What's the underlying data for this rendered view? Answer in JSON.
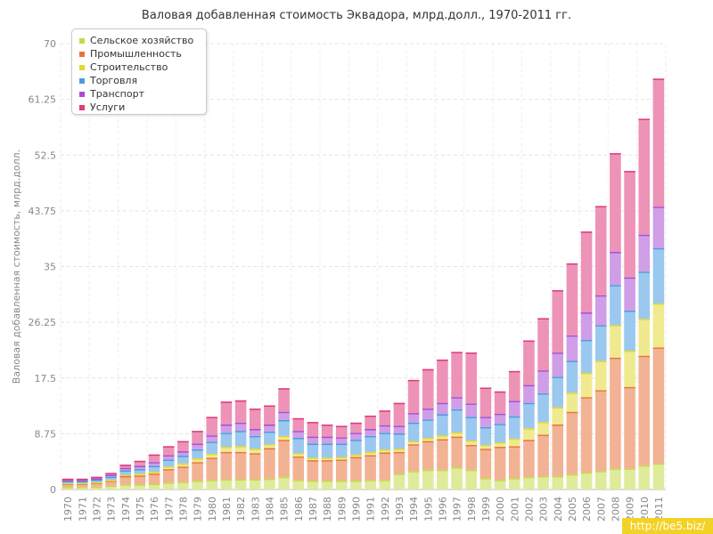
{
  "chart_data": {
    "type": "bar",
    "stacked": true,
    "title": "Валовая добавленная стоимость Эквадора, млрд.долл., 1970-2011 гг.",
    "ylabel": "Валовая добавленная стоимость, млрд.долл.",
    "ylim": [
      0,
      70
    ],
    "yticks": [
      "0",
      "8.75",
      "17.5",
      "26.25",
      "35",
      "43.75",
      "52.5",
      "61.25",
      "70"
    ],
    "grid": true,
    "legend_position": "top-left",
    "categories": [
      "1970",
      "1971",
      "1972",
      "1973",
      "1974",
      "1975",
      "1976",
      "1977",
      "1978",
      "1979",
      "1980",
      "1981",
      "1982",
      "1983",
      "1984",
      "1985",
      "1986",
      "1987",
      "1988",
      "1989",
      "1990",
      "1991",
      "1992",
      "1993",
      "1994",
      "1995",
      "1996",
      "1997",
      "1998",
      "1999",
      "2000",
      "2001",
      "2002",
      "2003",
      "2004",
      "2005",
      "2006",
      "2007",
      "2008",
      "2009",
      "2010",
      "2011"
    ],
    "series": [
      {
        "name": "Сельское хозяйство",
        "color": "#c7d84a",
        "values": [
          0.4,
          0.4,
          0.45,
          0.6,
          0.8,
          0.8,
          0.9,
          1.1,
          1.2,
          1.4,
          1.5,
          1.6,
          1.6,
          1.6,
          1.7,
          2.0,
          1.5,
          1.4,
          1.4,
          1.4,
          1.4,
          1.5,
          1.5,
          2.5,
          2.9,
          3.1,
          3.1,
          3.5,
          3.1,
          1.8,
          1.5,
          1.8,
          2.0,
          2.1,
          2.1,
          2.4,
          2.7,
          2.9,
          3.3,
          3.3,
          3.8,
          4.1
        ]
      },
      {
        "name": "Промышленность",
        "color": "#e8743c",
        "values": [
          0.5,
          0.5,
          0.6,
          0.8,
          1.3,
          1.4,
          1.6,
          2.1,
          2.4,
          2.9,
          3.5,
          4.3,
          4.3,
          4.1,
          4.8,
          5.8,
          3.7,
          3.2,
          3.2,
          3.3,
          3.7,
          3.9,
          4.3,
          3.4,
          4.2,
          4.5,
          4.8,
          4.8,
          3.9,
          4.6,
          5.2,
          5.0,
          5.8,
          6.5,
          8.1,
          9.8,
          11.8,
          12.7,
          17.4,
          12.8,
          17.2,
          18.2
        ]
      },
      {
        "name": "Строительство",
        "color": "#e2d832",
        "values": [
          0.1,
          0.1,
          0.1,
          0.1,
          0.2,
          0.3,
          0.3,
          0.4,
          0.5,
          0.6,
          0.6,
          0.8,
          0.9,
          0.7,
          0.6,
          0.6,
          0.5,
          0.4,
          0.4,
          0.4,
          0.4,
          0.5,
          0.5,
          0.5,
          0.5,
          0.5,
          0.6,
          0.7,
          0.7,
          0.6,
          0.7,
          1.2,
          1.8,
          2.0,
          2.7,
          3.0,
          3.8,
          4.6,
          5.1,
          5.7,
          5.8,
          6.9
        ]
      },
      {
        "name": "Торговля",
        "color": "#4a9be0",
        "values": [
          0.3,
          0.3,
          0.4,
          0.5,
          0.7,
          0.7,
          0.9,
          1.1,
          1.2,
          1.4,
          1.9,
          2.2,
          2.4,
          2.0,
          2.0,
          2.5,
          2.4,
          2.2,
          2.2,
          2.1,
          2.3,
          2.5,
          2.6,
          2.4,
          2.9,
          2.9,
          3.3,
          3.6,
          3.7,
          2.8,
          2.9,
          3.5,
          4.0,
          4.5,
          4.8,
          5.0,
          5.2,
          5.6,
          6.3,
          6.3,
          7.4,
          8.7
        ]
      },
      {
        "name": "Транспорт",
        "color": "#a74fd3",
        "values": [
          0.2,
          0.2,
          0.2,
          0.3,
          0.4,
          0.5,
          0.6,
          0.7,
          0.7,
          0.9,
          1.0,
          1.3,
          1.3,
          1.1,
          1.1,
          1.3,
          1.1,
          1.1,
          1.1,
          1.0,
          1.1,
          1.1,
          1.2,
          1.2,
          1.5,
          1.7,
          1.8,
          1.9,
          2.1,
          1.6,
          1.6,
          2.4,
          2.8,
          3.6,
          3.8,
          4.0,
          4.3,
          4.7,
          5.2,
          5.2,
          5.8,
          6.5
        ]
      },
      {
        "name": "Услуги",
        "color": "#de3b7c",
        "values": [
          0.2,
          0.2,
          0.25,
          0.3,
          0.5,
          0.8,
          1.2,
          1.4,
          1.6,
          2.0,
          2.9,
          3.6,
          3.5,
          3.2,
          3.0,
          3.7,
          2.0,
          2.3,
          1.9,
          1.8,
          1.6,
          2.1,
          2.3,
          3.6,
          5.2,
          6.2,
          6.8,
          7.1,
          8.0,
          4.6,
          3.5,
          4.7,
          7.0,
          8.2,
          9.8,
          11.3,
          12.7,
          14.0,
          15.5,
          16.7,
          18.2,
          20.1
        ]
      }
    ]
  },
  "watermark": "http://be5.biz/"
}
